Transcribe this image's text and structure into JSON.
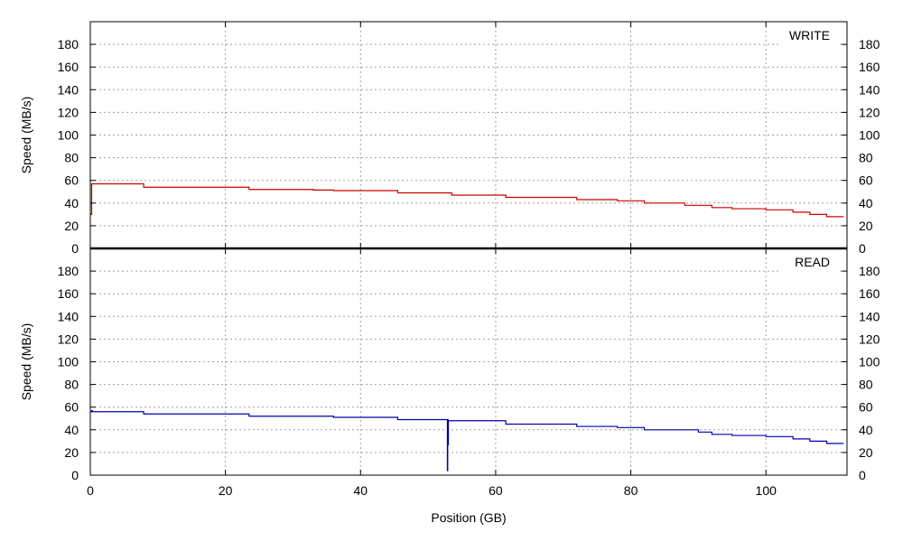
{
  "chart_data": {
    "type": "line",
    "xlabel": "Position (GB)",
    "xlim": [
      0,
      112
    ],
    "xticks": [
      0,
      20,
      40,
      60,
      80,
      100
    ],
    "ylabel": "Speed (MB/s)",
    "ylim": [
      0,
      200
    ],
    "yticks": [
      0,
      20,
      40,
      60,
      80,
      100,
      120,
      140,
      160,
      180
    ],
    "grid": true,
    "legend_placement": "top-right",
    "panels": [
      {
        "id": "write",
        "name": "WRITE",
        "color": "#cc0000",
        "x": [
          0,
          0.2,
          0.3,
          7.8,
          7.9,
          20.5,
          23.5,
          26,
          30,
          33,
          36,
          40,
          43,
          45.5,
          49,
          52,
          53.5,
          55,
          57,
          60,
          61.5,
          64,
          67,
          70,
          72,
          75,
          78,
          81,
          82,
          85,
          87,
          88,
          90,
          92,
          95,
          98,
          100,
          102,
          104,
          106.5,
          109,
          111.5
        ],
        "y": [
          30,
          57,
          57,
          57,
          54,
          54,
          52,
          52,
          52,
          51.5,
          51,
          51,
          51,
          49,
          49,
          49,
          47,
          47,
          47,
          47,
          45,
          45,
          45,
          45,
          43,
          43,
          42,
          42,
          40,
          40,
          40,
          38,
          38,
          36,
          35,
          35,
          34,
          34,
          32,
          30,
          28,
          28
        ]
      },
      {
        "id": "read",
        "name": "READ",
        "color": "#0000aa",
        "x": [
          0,
          0.2,
          0.3,
          7.8,
          7.9,
          20.5,
          23.5,
          26,
          30,
          33,
          36,
          40,
          43,
          45.5,
          49,
          52.8,
          52.85,
          52.9,
          52.95,
          53,
          55,
          57,
          60,
          61.5,
          64,
          67,
          70,
          72,
          75,
          78,
          82,
          85,
          88,
          90,
          92,
          95,
          98,
          100,
          102,
          104,
          106.5,
          109,
          111.5
        ],
        "y": [
          56,
          57,
          56,
          56,
          54,
          54,
          52,
          52,
          52,
          52,
          51,
          51,
          51,
          49,
          49,
          49,
          4,
          49,
          27,
          48,
          48,
          48,
          48,
          45,
          45,
          45,
          45,
          43,
          43,
          42,
          40,
          40,
          40,
          38,
          36,
          35,
          35,
          34,
          34,
          32,
          30,
          28,
          28
        ]
      }
    ]
  }
}
